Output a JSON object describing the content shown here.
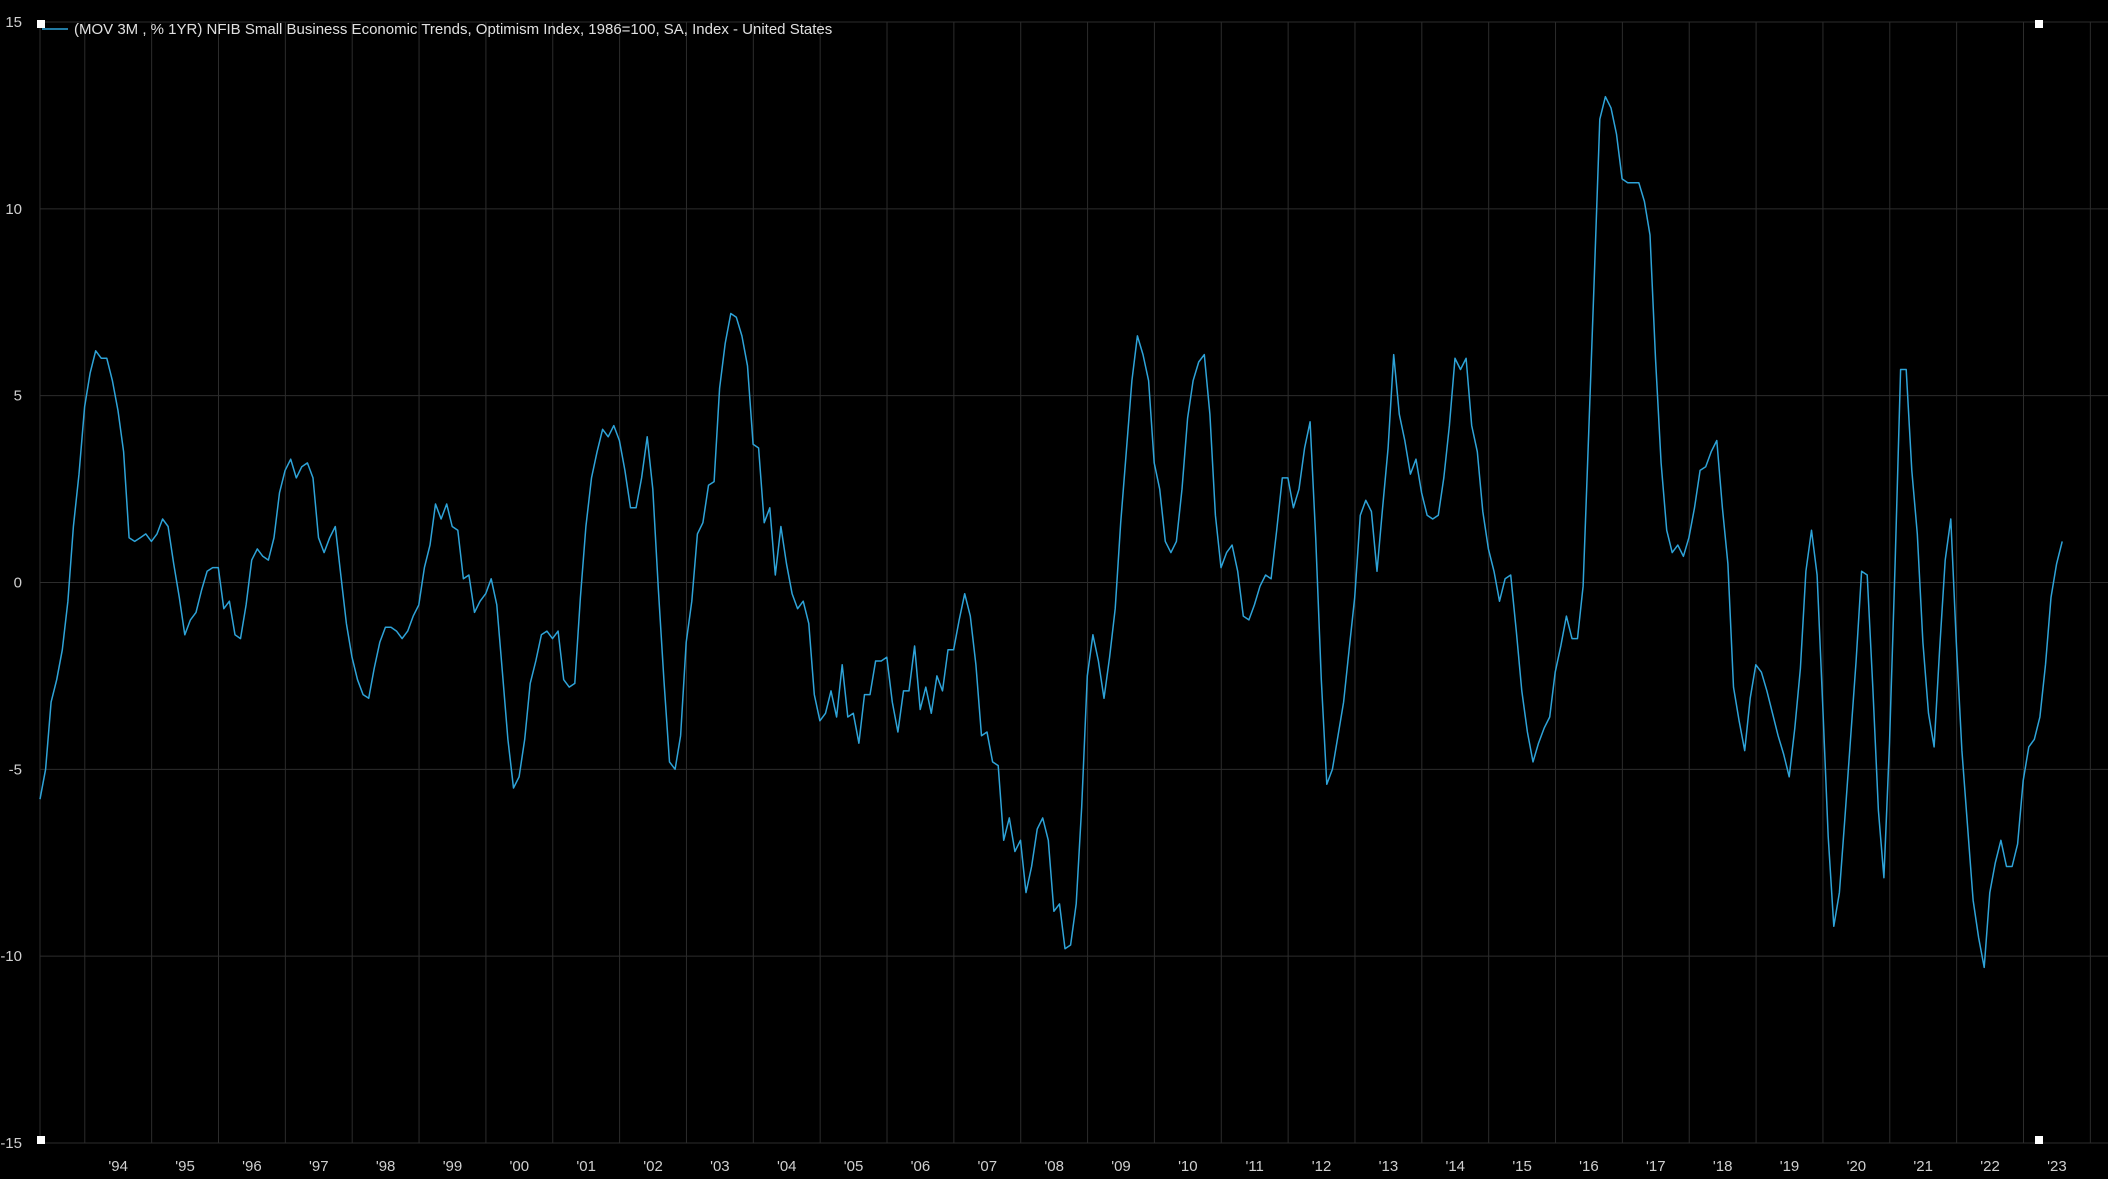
{
  "chart_data": {
    "type": "line",
    "legend": "(MOV 3M , % 1YR) NFIB Small Business Economic Trends, Optimism Index, 1986=100, SA, Index - United States",
    "legend_position": "top-left",
    "grid": true,
    "colors": {
      "background": "#000000",
      "line": "#2ea3d8",
      "text": "#d0d0d0",
      "grid": "#2c2c2c"
    },
    "ylim": [
      -15,
      15
    ],
    "y_ticks": [
      15,
      10,
      5,
      0,
      -5,
      -10,
      -15
    ],
    "x_range": [
      1993.33,
      2023.92
    ],
    "x_ticks": [
      {
        "year": 1994,
        "label": "'94"
      },
      {
        "year": 1995,
        "label": "'95"
      },
      {
        "year": 1996,
        "label": "'96"
      },
      {
        "year": 1997,
        "label": "'97"
      },
      {
        "year": 1998,
        "label": "'98"
      },
      {
        "year": 1999,
        "label": "'99"
      },
      {
        "year": 2000,
        "label": "'00"
      },
      {
        "year": 2001,
        "label": "'01"
      },
      {
        "year": 2002,
        "label": "'02"
      },
      {
        "year": 2003,
        "label": "'03"
      },
      {
        "year": 2004,
        "label": "'04"
      },
      {
        "year": 2005,
        "label": "'05"
      },
      {
        "year": 2006,
        "label": "'06"
      },
      {
        "year": 2007,
        "label": "'07"
      },
      {
        "year": 2008,
        "label": "'08"
      },
      {
        "year": 2009,
        "label": "'09"
      },
      {
        "year": 2010,
        "label": "'10"
      },
      {
        "year": 2011,
        "label": "'11"
      },
      {
        "year": 2012,
        "label": "'12"
      },
      {
        "year": 2013,
        "label": "'13"
      },
      {
        "year": 2014,
        "label": "'14"
      },
      {
        "year": 2015,
        "label": "'15"
      },
      {
        "year": 2016,
        "label": "'16"
      },
      {
        "year": 2017,
        "label": "'17"
      },
      {
        "year": 2018,
        "label": "'18"
      },
      {
        "year": 2019,
        "label": "'19"
      },
      {
        "year": 2020,
        "label": "'20"
      },
      {
        "year": 2021,
        "label": "'21"
      },
      {
        "year": 2022,
        "label": "'22"
      },
      {
        "year": 2023,
        "label": "'23"
      }
    ],
    "series": [
      {
        "start_year": 1993.33,
        "step": 0.08333,
        "values": [
          -5.8,
          -5.0,
          -3.2,
          -2.6,
          -1.8,
          -0.5,
          1.5,
          2.9,
          4.7,
          5.6,
          6.2,
          6.0,
          6.0,
          5.4,
          4.6,
          3.5,
          1.2,
          1.1,
          1.2,
          1.3,
          1.1,
          1.3,
          1.7,
          1.5,
          0.5,
          -0.4,
          -1.4,
          -1.0,
          -0.8,
          -0.2,
          0.3,
          0.4,
          0.4,
          -0.7,
          -0.5,
          -1.4,
          -1.5,
          -0.6,
          0.6,
          0.9,
          0.7,
          0.6,
          1.2,
          2.4,
          3.0,
          3.3,
          2.8,
          3.1,
          3.2,
          2.8,
          1.2,
          0.8,
          1.2,
          1.5,
          0.2,
          -1.1,
          -2.0,
          -2.6,
          -3.0,
          -3.1,
          -2.3,
          -1.6,
          -1.2,
          -1.2,
          -1.3,
          -1.5,
          -1.3,
          -0.9,
          -0.6,
          0.4,
          1.0,
          2.1,
          1.7,
          2.1,
          1.5,
          1.4,
          0.1,
          0.2,
          -0.8,
          -0.5,
          -0.3,
          0.1,
          -0.6,
          -2.4,
          -4.2,
          -5.5,
          -5.2,
          -4.2,
          -2.7,
          -2.1,
          -1.4,
          -1.3,
          -1.5,
          -1.3,
          -2.6,
          -2.8,
          -2.7,
          -0.4,
          1.5,
          2.8,
          3.5,
          4.1,
          3.9,
          4.2,
          3.8,
          3.0,
          2.0,
          2.0,
          2.8,
          3.9,
          2.5,
          -0.2,
          -2.6,
          -4.8,
          -5.0,
          -4.1,
          -1.6,
          -0.5,
          1.3,
          1.6,
          2.6,
          2.7,
          5.2,
          6.4,
          7.2,
          7.1,
          6.6,
          5.8,
          3.7,
          3.6,
          1.6,
          2.0,
          0.2,
          1.5,
          0.5,
          -0.3,
          -0.7,
          -0.5,
          -1.1,
          -3.0,
          -3.7,
          -3.5,
          -2.9,
          -3.6,
          -2.2,
          -3.6,
          -3.5,
          -4.3,
          -3.0,
          -3.0,
          -2.1,
          -2.1,
          -2.0,
          -3.2,
          -4.0,
          -2.9,
          -2.9,
          -1.7,
          -3.4,
          -2.8,
          -3.5,
          -2.5,
          -2.9,
          -1.8,
          -1.8,
          -1.0,
          -0.3,
          -0.9,
          -2.2,
          -4.1,
          -4.0,
          -4.8,
          -4.9,
          -6.9,
          -6.3,
          -7.2,
          -6.9,
          -8.3,
          -7.6,
          -6.6,
          -6.3,
          -6.9,
          -8.8,
          -8.6,
          -9.8,
          -9.7,
          -8.6,
          -6.0,
          -2.5,
          -1.4,
          -2.1,
          -3.1,
          -2.0,
          -0.7,
          1.6,
          3.5,
          5.4,
          6.6,
          6.1,
          5.4,
          3.2,
          2.5,
          1.1,
          0.8,
          1.1,
          2.5,
          4.4,
          5.4,
          5.9,
          6.1,
          4.5,
          1.8,
          0.4,
          0.8,
          1.0,
          0.3,
          -0.9,
          -1.0,
          -0.6,
          -0.1,
          0.2,
          0.1,
          1.4,
          2.8,
          2.8,
          2.0,
          2.5,
          3.6,
          4.3,
          1.2,
          -2.6,
          -5.4,
          -5.0,
          -4.1,
          -3.2,
          -1.8,
          -0.4,
          1.8,
          2.2,
          1.9,
          0.3,
          2.0,
          3.6,
          6.1,
          4.5,
          3.8,
          2.9,
          3.3,
          2.4,
          1.8,
          1.7,
          1.8,
          2.8,
          4.2,
          6.0,
          5.7,
          6.0,
          4.2,
          3.5,
          1.9,
          0.9,
          0.3,
          -0.5,
          0.1,
          0.2,
          -1.3,
          -2.9,
          -4.0,
          -4.8,
          -4.3,
          -3.9,
          -3.6,
          -2.4,
          -1.7,
          -0.9,
          -1.5,
          -1.5,
          -0.1,
          4.0,
          8.1,
          12.4,
          13.0,
          12.7,
          12.0,
          10.8,
          10.7,
          10.7,
          10.7,
          10.2,
          9.3,
          6.0,
          3.2,
          1.4,
          0.8,
          1.0,
          0.7,
          1.2,
          2.0,
          3.0,
          3.1,
          3.5,
          3.8,
          2.0,
          0.5,
          -2.8,
          -3.7,
          -4.5,
          -3.1,
          -2.2,
          -2.4,
          -2.9,
          -3.5,
          -4.1,
          -4.6,
          -5.2,
          -3.9,
          -2.3,
          0.3,
          1.4,
          0.2,
          -3.2,
          -6.8,
          -9.2,
          -8.3,
          -6.3,
          -4.2,
          -2.1,
          0.3,
          0.2,
          -2.8,
          -6.1,
          -7.9,
          -4.3,
          0.5,
          5.7,
          5.7,
          3.0,
          1.3,
          -1.6,
          -3.5,
          -4.4,
          -1.8,
          0.6,
          1.7,
          -1.6,
          -4.5,
          -6.5,
          -8.5,
          -9.5,
          -10.3,
          -8.3,
          -7.5,
          -6.9,
          -7.6,
          -7.6,
          -7.0,
          -5.3,
          -4.4,
          -4.2,
          -3.6,
          -2.2,
          -0.4,
          0.5,
          1.1
        ]
      }
    ]
  }
}
